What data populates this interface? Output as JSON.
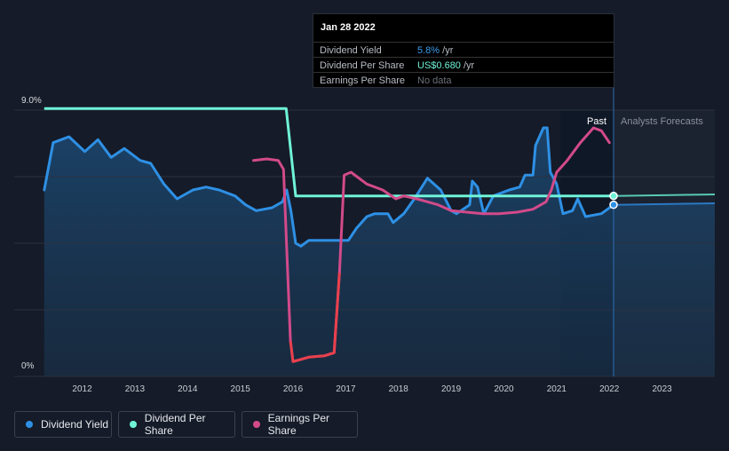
{
  "tooltip": {
    "date": "Jan 28 2022",
    "rows": [
      {
        "label": "Dividend Yield",
        "value": "5.8%",
        "suffix": " /yr",
        "color": "#3d9be9"
      },
      {
        "label": "Dividend Per Share",
        "value": "US$0.680",
        "suffix": " /yr",
        "color": "#6ff3d8"
      },
      {
        "label": "Earnings Per Share",
        "value": "No data",
        "suffix": "",
        "color": "#6b7079"
      }
    ]
  },
  "legend": {
    "items": [
      {
        "label": "Dividend Yield",
        "color": "#2e90e5"
      },
      {
        "label": "Dividend Per Share",
        "color": "#6ff3d8"
      },
      {
        "label": "Earnings Per Share",
        "color": "#d24a8a"
      }
    ]
  },
  "chart_data": {
    "type": "line",
    "ylim": [
      0,
      9
    ],
    "y_tick_labels": [
      "9.0%",
      "0%"
    ],
    "xlim": [
      2011.25,
      2024.0
    ],
    "x_ticks": [
      2012,
      2013,
      2014,
      2015,
      2016,
      2017,
      2018,
      2019,
      2020,
      2021,
      2022,
      2023
    ],
    "region_labels": {
      "past": "Past",
      "forecast": "Analysts Forecasts"
    },
    "past_start": 2021.08,
    "forecast_start": 2022.08,
    "colors": {
      "dividend_yield": "#2e90e5",
      "dividend_per_share": "#6ff3d8",
      "earnings_per_share": "#d24a8a"
    },
    "series": [
      {
        "name": "Dividend Yield",
        "points": [
          [
            2011.28,
            6.3
          ],
          [
            2011.45,
            7.9
          ],
          [
            2011.75,
            8.1
          ],
          [
            2012.05,
            7.6
          ],
          [
            2012.3,
            8.0
          ],
          [
            2012.55,
            7.4
          ],
          [
            2012.8,
            7.7
          ],
          [
            2013.1,
            7.3
          ],
          [
            2013.3,
            7.2
          ],
          [
            2013.55,
            6.5
          ],
          [
            2013.8,
            6.0
          ],
          [
            2014.1,
            6.3
          ],
          [
            2014.35,
            6.4
          ],
          [
            2014.6,
            6.3
          ],
          [
            2014.9,
            6.1
          ],
          [
            2015.1,
            5.8
          ],
          [
            2015.3,
            5.6
          ],
          [
            2015.6,
            5.7
          ],
          [
            2015.8,
            5.9
          ],
          [
            2015.88,
            6.3
          ],
          [
            2015.96,
            5.6
          ],
          [
            2016.05,
            4.5
          ],
          [
            2016.15,
            4.4
          ],
          [
            2016.3,
            4.6
          ],
          [
            2016.7,
            4.6
          ],
          [
            2017.05,
            4.6
          ],
          [
            2017.2,
            5.0
          ],
          [
            2017.4,
            5.4
          ],
          [
            2017.55,
            5.5
          ],
          [
            2017.8,
            5.5
          ],
          [
            2017.9,
            5.2
          ],
          [
            2018.1,
            5.5
          ],
          [
            2018.3,
            6.0
          ],
          [
            2018.55,
            6.7
          ],
          [
            2018.8,
            6.3
          ],
          [
            2019.0,
            5.6
          ],
          [
            2019.1,
            5.5
          ],
          [
            2019.35,
            5.8
          ],
          [
            2019.4,
            6.6
          ],
          [
            2019.5,
            6.4
          ],
          [
            2019.62,
            5.5
          ],
          [
            2019.8,
            6.1
          ],
          [
            2020.1,
            6.3
          ],
          [
            2020.3,
            6.4
          ],
          [
            2020.4,
            6.8
          ],
          [
            2020.55,
            6.8
          ],
          [
            2020.6,
            7.8
          ],
          [
            2020.75,
            8.4
          ],
          [
            2020.82,
            8.4
          ],
          [
            2020.88,
            6.9
          ],
          [
            2021.0,
            6.5
          ],
          [
            2021.12,
            5.5
          ],
          [
            2021.3,
            5.6
          ],
          [
            2021.4,
            6.0
          ],
          [
            2021.55,
            5.4
          ],
          [
            2021.85,
            5.5
          ],
          [
            2022.08,
            5.8
          ],
          [
            2024.0,
            5.85
          ]
        ]
      },
      {
        "name": "Dividend Per Share",
        "points": [
          [
            2011.28,
            9.05
          ],
          [
            2015.6,
            9.05
          ],
          [
            2015.87,
            9.05
          ],
          [
            2016.05,
            6.1
          ],
          [
            2022.08,
            6.1
          ],
          [
            2024.0,
            6.15
          ]
        ]
      },
      {
        "name": "Earnings Per Share",
        "points": [
          [
            2015.25,
            7.3
          ],
          [
            2015.5,
            7.35
          ],
          [
            2015.72,
            7.3
          ],
          [
            2015.82,
            7.0
          ],
          [
            2015.95,
            1.2
          ],
          [
            2016.0,
            0.5
          ],
          [
            2016.3,
            0.65
          ],
          [
            2016.6,
            0.7
          ],
          [
            2016.78,
            0.8
          ],
          [
            2016.88,
            3.5
          ],
          [
            2016.97,
            6.8
          ],
          [
            2017.1,
            6.9
          ],
          [
            2017.4,
            6.5
          ],
          [
            2017.7,
            6.3
          ],
          [
            2017.95,
            6.0
          ],
          [
            2018.1,
            6.1
          ],
          [
            2018.35,
            6.0
          ],
          [
            2018.55,
            5.9
          ],
          [
            2018.75,
            5.8
          ],
          [
            2019.0,
            5.6
          ],
          [
            2019.3,
            5.55
          ],
          [
            2019.6,
            5.5
          ],
          [
            2019.9,
            5.5
          ],
          [
            2020.25,
            5.55
          ],
          [
            2020.55,
            5.65
          ],
          [
            2020.8,
            5.9
          ],
          [
            2020.9,
            6.3
          ],
          [
            2021.0,
            6.9
          ],
          [
            2021.2,
            7.3
          ],
          [
            2021.45,
            7.9
          ],
          [
            2021.7,
            8.4
          ],
          [
            2021.85,
            8.3
          ],
          [
            2022.0,
            7.9
          ]
        ]
      }
    ]
  }
}
